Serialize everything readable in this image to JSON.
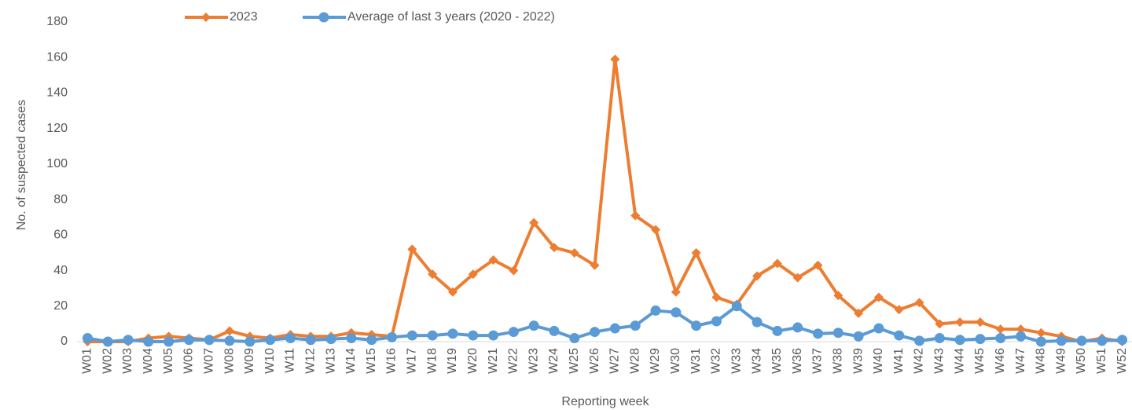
{
  "chart_data": {
    "type": "line",
    "x_label": "Reporting week",
    "y_label": "No. of suspected cases",
    "categories": [
      "W01",
      "W02",
      "W03",
      "W04",
      "W05",
      "W06",
      "W07",
      "W08",
      "W09",
      "W10",
      "W11",
      "W12",
      "W13",
      "W14",
      "W15",
      "W16",
      "W17",
      "W18",
      "W19",
      "W20",
      "W21",
      "W22",
      "W23",
      "W24",
      "W25",
      "W26",
      "W27",
      "W28",
      "W29",
      "W30",
      "W31",
      "W32",
      "W33",
      "W34",
      "W35",
      "W36",
      "W37",
      "W38",
      "W39",
      "W40",
      "W41",
      "W42",
      "W43",
      "W44",
      "W45",
      "W46",
      "W47",
      "W48",
      "W49",
      "W50",
      "W51",
      "W52"
    ],
    "series": [
      {
        "name": "2023",
        "color": "#ed7d31",
        "marker": "diamond",
        "values": [
          0,
          0,
          0,
          2,
          3,
          2,
          1,
          6,
          3,
          2,
          4,
          3,
          3,
          5,
          4,
          3,
          52,
          38,
          28,
          38,
          46,
          40,
          67,
          53,
          50,
          43,
          159,
          71,
          63,
          28,
          50,
          25,
          21,
          37,
          44,
          36,
          43,
          26,
          16,
          25,
          18,
          22,
          10,
          11,
          11,
          7,
          7,
          5,
          3,
          0,
          2,
          0
        ]
      },
      {
        "name": "Average of last 3 years (2020 - 2022)",
        "color": "#5b9bd5",
        "marker": "circle",
        "values": [
          2,
          0,
          1,
          0,
          0,
          1,
          1,
          0.5,
          0,
          1,
          2,
          1,
          1.5,
          2,
          1,
          2.5,
          3.5,
          3.5,
          4.5,
          3.5,
          3.5,
          5.5,
          9,
          6,
          2,
          5.5,
          7.5,
          9,
          17.5,
          16.5,
          9,
          11.5,
          20,
          11,
          6,
          8,
          4.5,
          5,
          3,
          7.5,
          3.5,
          0.5,
          2,
          1,
          1.5,
          2,
          3,
          0,
          0.5,
          0.5,
          0.5,
          1
        ]
      }
    ],
    "ylim": [
      0,
      180
    ],
    "yticks": [
      0,
      20,
      40,
      60,
      80,
      100,
      120,
      140,
      160,
      180
    ]
  }
}
